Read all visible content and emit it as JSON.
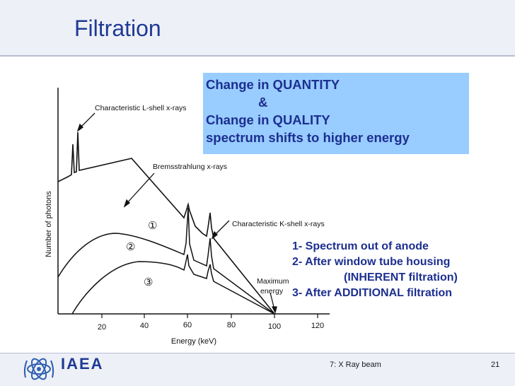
{
  "slide": {
    "title": "Filtration",
    "callout": {
      "line1": "Change in QUANTITY",
      "line2": "&",
      "line3": "Change in QUALITY",
      "line4": "spectrum shifts to higher energy"
    },
    "legend": {
      "item1": "1- Spectrum out of anode",
      "item2": "2- After window tube housing",
      "item2b": "(INHERENT filtration)",
      "item3": "3- After ADDITIONAL filtration"
    },
    "footer": {
      "logo_text": "IAEA",
      "center": "7: X Ray beam",
      "page": "21"
    }
  },
  "figure": {
    "ylabel": "Number of photons",
    "xlabel": "Energy (keV)",
    "xticks": [
      "20",
      "40",
      "60",
      "80",
      "100",
      "120"
    ],
    "labels": {
      "l_shell": "Characteristic L-shell x-rays",
      "brems": "Bremsstrahlung x-rays",
      "k_shell": "Characteristic K-shell x-rays",
      "max_energy_1": "Maximum",
      "max_energy_2": "energy"
    },
    "curve_markers": [
      "①",
      "②",
      "③"
    ]
  }
}
